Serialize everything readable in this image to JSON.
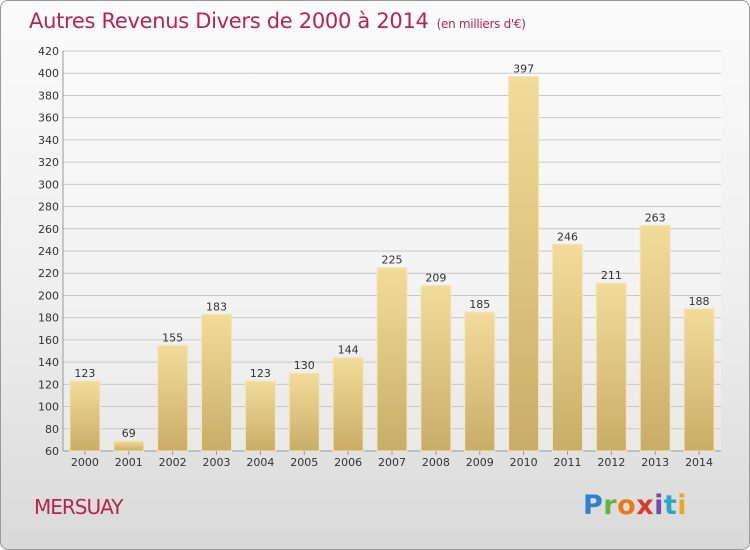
{
  "chart_data": {
    "type": "bar",
    "title": "Autres Revenus Divers de 2000 à 2014",
    "subtitle": "(en milliers d'€)",
    "categories": [
      "2000",
      "2001",
      "2002",
      "2003",
      "2004",
      "2005",
      "2006",
      "2007",
      "2008",
      "2009",
      "2010",
      "2011",
      "2012",
      "2013",
      "2014"
    ],
    "values": [
      123,
      69,
      155,
      183,
      123,
      130,
      144,
      225,
      209,
      185,
      397,
      246,
      211,
      263,
      188
    ],
    "ylim": [
      60,
      420
    ],
    "yticks": [
      60,
      80,
      100,
      120,
      140,
      160,
      180,
      200,
      220,
      240,
      260,
      280,
      300,
      320,
      340,
      360,
      380,
      400,
      420
    ],
    "grid": true,
    "bar_color_top": "#f2dc9a",
    "bar_color_bottom": "#c9ad66"
  },
  "place": "MERSUAY",
  "brand": {
    "p": "P",
    "r": "r",
    "o": "o",
    "x": "x",
    "i1": "i",
    "t": "t",
    "i2": "i"
  },
  "colors": {
    "accent": "#b4254f",
    "grid": "#c8c8c8",
    "text": "#333333"
  }
}
